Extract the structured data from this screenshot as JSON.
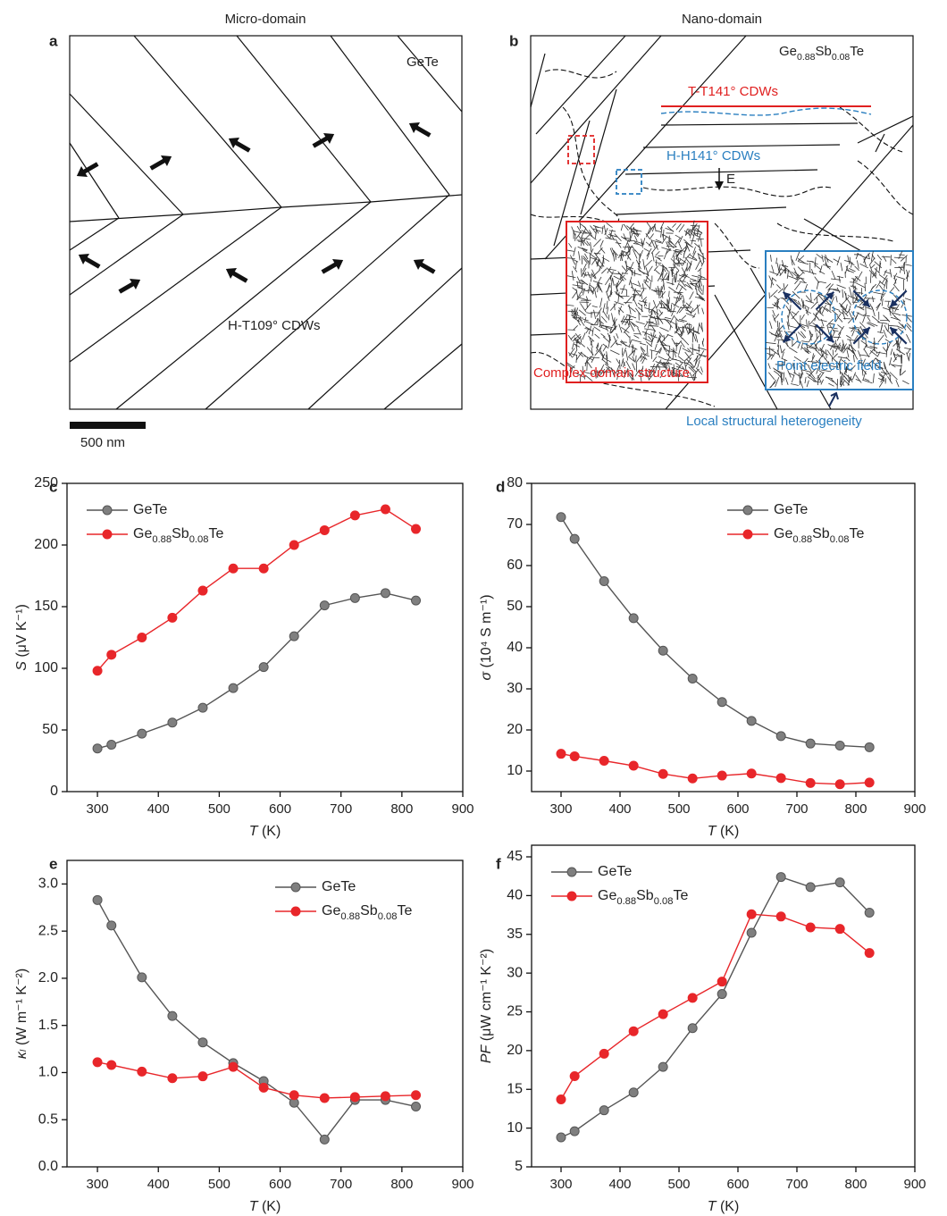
{
  "panels": {
    "a": {
      "label": "a",
      "heading": "Micro-domain",
      "material": "GeTe",
      "walls": "H-T109°  CDWs",
      "scale": "500 nm"
    },
    "b": {
      "label": "b",
      "heading": "Nano-domain",
      "material": "Ge0.88Sb0.08Te",
      "tt_walls": "T-T141°  CDWs",
      "hh_walls": "H-H141°  CDWs",
      "field": "E",
      "complex": "Complex domain structure",
      "point": "Point electric field",
      "heterogeneity": "Local structural heterogeneity"
    }
  },
  "chart_data": [
    {
      "type": "line",
      "label": "c",
      "xlabel": "T (K)",
      "ylabel": "S (μV K⁻¹)",
      "x": [
        300,
        323,
        373,
        423,
        473,
        523,
        573,
        623,
        673,
        723,
        773,
        823
      ],
      "series": [
        {
          "name": "GeTe",
          "color": "#7f7f7f",
          "values": [
            35,
            38,
            47,
            56,
            68,
            84,
            101,
            126,
            151,
            157,
            161,
            155
          ]
        },
        {
          "name": "Ge0.88Sb0.08Te",
          "color": "#e8262a",
          "values": [
            98,
            111,
            125,
            141,
            163,
            181,
            181,
            200,
            212,
            224,
            229,
            213
          ]
        }
      ],
      "xlim": [
        250,
        900
      ],
      "xticks": [
        300,
        400,
        500,
        600,
        700,
        800,
        900
      ],
      "ylim": [
        0,
        250
      ],
      "yticks": [
        0,
        50,
        100,
        150,
        200,
        250
      ],
      "legend": "upper left"
    },
    {
      "type": "line",
      "label": "d",
      "xlabel": "T (K)",
      "ylabel": "σ (10⁴ S m⁻¹)",
      "x": [
        300,
        323,
        373,
        423,
        473,
        523,
        573,
        623,
        673,
        723,
        773,
        823
      ],
      "series": [
        {
          "name": "GeTe",
          "color": "#7f7f7f",
          "values": [
            71.8,
            66.5,
            56.2,
            47.2,
            39.3,
            32.5,
            26.8,
            22.2,
            18.5,
            16.7,
            16.2,
            15.8
          ]
        },
        {
          "name": "Ge0.88Sb0.08Te",
          "color": "#e8262a",
          "values": [
            14.2,
            13.6,
            12.5,
            11.3,
            9.3,
            8.2,
            8.9,
            9.4,
            8.3,
            7.1,
            6.8,
            7.2
          ]
        }
      ],
      "xlim": [
        250,
        900
      ],
      "xticks": [
        300,
        400,
        500,
        600,
        700,
        800,
        900
      ],
      "ylim": [
        5,
        80
      ],
      "yticks": [
        10,
        20,
        30,
        40,
        50,
        60,
        70,
        80
      ],
      "legend": "upper right"
    },
    {
      "type": "line",
      "label": "e",
      "xlabel": "T (K)",
      "ylabel": "κₗ (W m⁻¹ K⁻²)",
      "x": [
        300,
        323,
        373,
        423,
        473,
        523,
        573,
        623,
        673,
        723,
        773,
        823
      ],
      "series": [
        {
          "name": "GeTe",
          "color": "#7f7f7f",
          "values": [
            2.83,
            2.56,
            2.01,
            1.6,
            1.32,
            1.1,
            0.91,
            0.68,
            0.29,
            0.71,
            0.71,
            0.64
          ]
        },
        {
          "name": "Ge0.88Sb0.08Te",
          "color": "#e8262a",
          "values": [
            1.11,
            1.08,
            1.01,
            0.94,
            0.96,
            1.06,
            0.84,
            0.76,
            0.73,
            0.74,
            0.75,
            0.76
          ]
        }
      ],
      "xlim": [
        250,
        900
      ],
      "xticks": [
        300,
        400,
        500,
        600,
        700,
        800,
        900
      ],
      "ylim": [
        0,
        3.25
      ],
      "yticks": [
        {
          "value": 0,
          "label": "0.0"
        },
        0.5,
        {
          "value": 1,
          "label": "1.0"
        },
        1.5,
        {
          "value": 2,
          "label": "2.0"
        },
        2.5,
        {
          "value": 3,
          "label": "3.0"
        }
      ],
      "legend": "upper right"
    },
    {
      "type": "line",
      "label": "f",
      "xlabel": "T (K)",
      "ylabel": "PF (μW cm⁻¹ K⁻²)",
      "x": [
        300,
        323,
        373,
        423,
        473,
        523,
        573,
        623,
        673,
        723,
        773,
        823
      ],
      "series": [
        {
          "name": "GeTe",
          "color": "#7f7f7f",
          "values": [
            8.8,
            9.6,
            12.3,
            14.6,
            17.9,
            22.9,
            27.3,
            35.2,
            42.4,
            41.1,
            41.7,
            37.8
          ]
        },
        {
          "name": "Ge0.88Sb0.08Te",
          "color": "#e8262a",
          "values": [
            13.7,
            16.7,
            19.6,
            22.5,
            24.7,
            26.8,
            28.9,
            37.6,
            37.3,
            35.9,
            35.7,
            32.6
          ]
        }
      ],
      "xlim": [
        250,
        900
      ],
      "xticks": [
        300,
        400,
        500,
        600,
        700,
        800,
        900
      ],
      "ylim": [
        5,
        46.5
      ],
      "yticks": [
        5,
        10,
        15,
        20,
        25,
        30,
        35,
        40,
        45
      ],
      "legend": "upper left"
    }
  ]
}
